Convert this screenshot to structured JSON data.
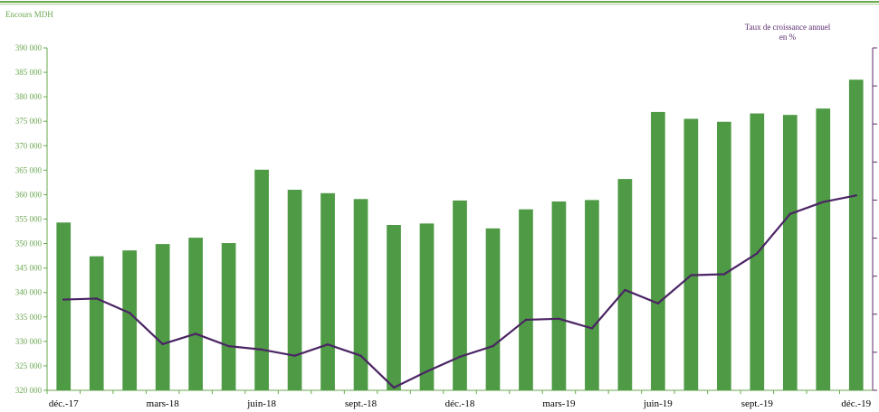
{
  "chart_data": {
    "type": "bar+line",
    "left_axis_label": "Encours MDH",
    "right_axis_label_line1": "Taux de croissance annuel",
    "right_axis_label_line2": "en %",
    "ylim": [
      320000,
      390000
    ],
    "yticks": [
      "390 000",
      "385 000",
      "380 000",
      "375 000",
      "370 000",
      "365 000",
      "360 000",
      "355 000",
      "350 000",
      "345 000",
      "340 000",
      "335 000",
      "330 000",
      "325 000",
      "320 000"
    ],
    "ytick_values": [
      390000,
      385000,
      380000,
      375000,
      370000,
      365000,
      360000,
      355000,
      350000,
      345000,
      340000,
      335000,
      330000,
      325000,
      320000
    ],
    "right_tick_count": 9,
    "x_labels": [
      "déc.-17",
      "mars-18",
      "juin-18",
      "sept.-18",
      "déc.-18",
      "mars-19",
      "juin-19",
      "sept.-19",
      "déc.-19"
    ],
    "x_label_every": 3,
    "bars": {
      "color": "#4e9a45",
      "values": [
        354300,
        347400,
        348600,
        349900,
        351200,
        350100,
        365100,
        361000,
        360300,
        359100,
        353800,
        354100,
        358800,
        353100,
        357000,
        358600,
        358900,
        363200,
        376900,
        375500,
        374900,
        376600,
        376300,
        377600,
        383500
      ]
    },
    "line": {
      "color": "#4b2464",
      "relative_levels": [
        0.265,
        0.268,
        0.226,
        0.135,
        0.165,
        0.129,
        0.119,
        0.101,
        0.134,
        0.101,
        0.008,
        0.055,
        0.098,
        0.129,
        0.206,
        0.209,
        0.181,
        0.293,
        0.254,
        0.336,
        0.339,
        0.4,
        0.515,
        0.55,
        0.569
      ]
    },
    "grid": false,
    "accent_green": "#6aa84f",
    "accent_purple": "#5b2a6e"
  }
}
